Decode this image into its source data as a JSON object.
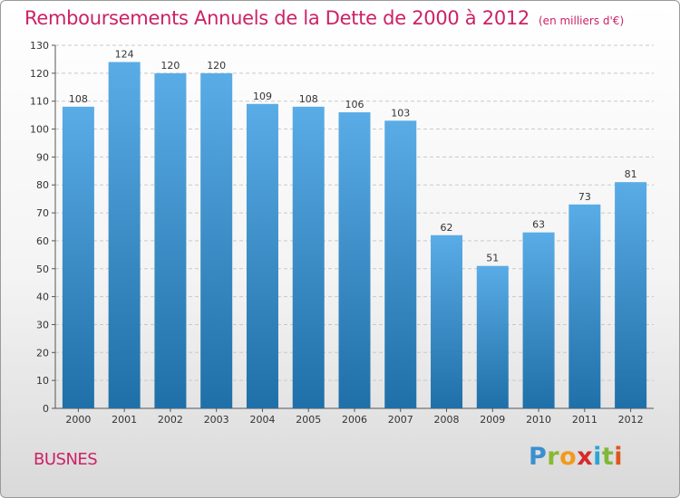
{
  "header": {
    "title": "Remboursements Annuels de la Dette de 2000 à 2012",
    "unit_note": "(en milliers d'€)"
  },
  "footer": {
    "commune": "BUSNES",
    "brand_logo": "Proxiti"
  },
  "colors": {
    "title": "#cc2266",
    "bar_top": "#5aace6",
    "bar_bottom": "#1f6fa8"
  },
  "chart_data": {
    "type": "bar",
    "title": "Remboursements Annuels de la Dette de 2000 à 2012",
    "subtitle": "(en milliers d'€)",
    "xlabel": "",
    "ylabel": "",
    "categories": [
      "2000",
      "2001",
      "2002",
      "2003",
      "2004",
      "2005",
      "2006",
      "2007",
      "2008",
      "2009",
      "2010",
      "2011",
      "2012"
    ],
    "values": [
      108,
      124,
      120,
      120,
      109,
      108,
      106,
      103,
      62,
      51,
      63,
      73,
      81
    ],
    "ylim": [
      0,
      130
    ],
    "yticks": [
      0,
      10,
      20,
      30,
      40,
      50,
      60,
      70,
      80,
      90,
      100,
      110,
      120,
      130
    ],
    "grid": true,
    "legend": "none"
  }
}
